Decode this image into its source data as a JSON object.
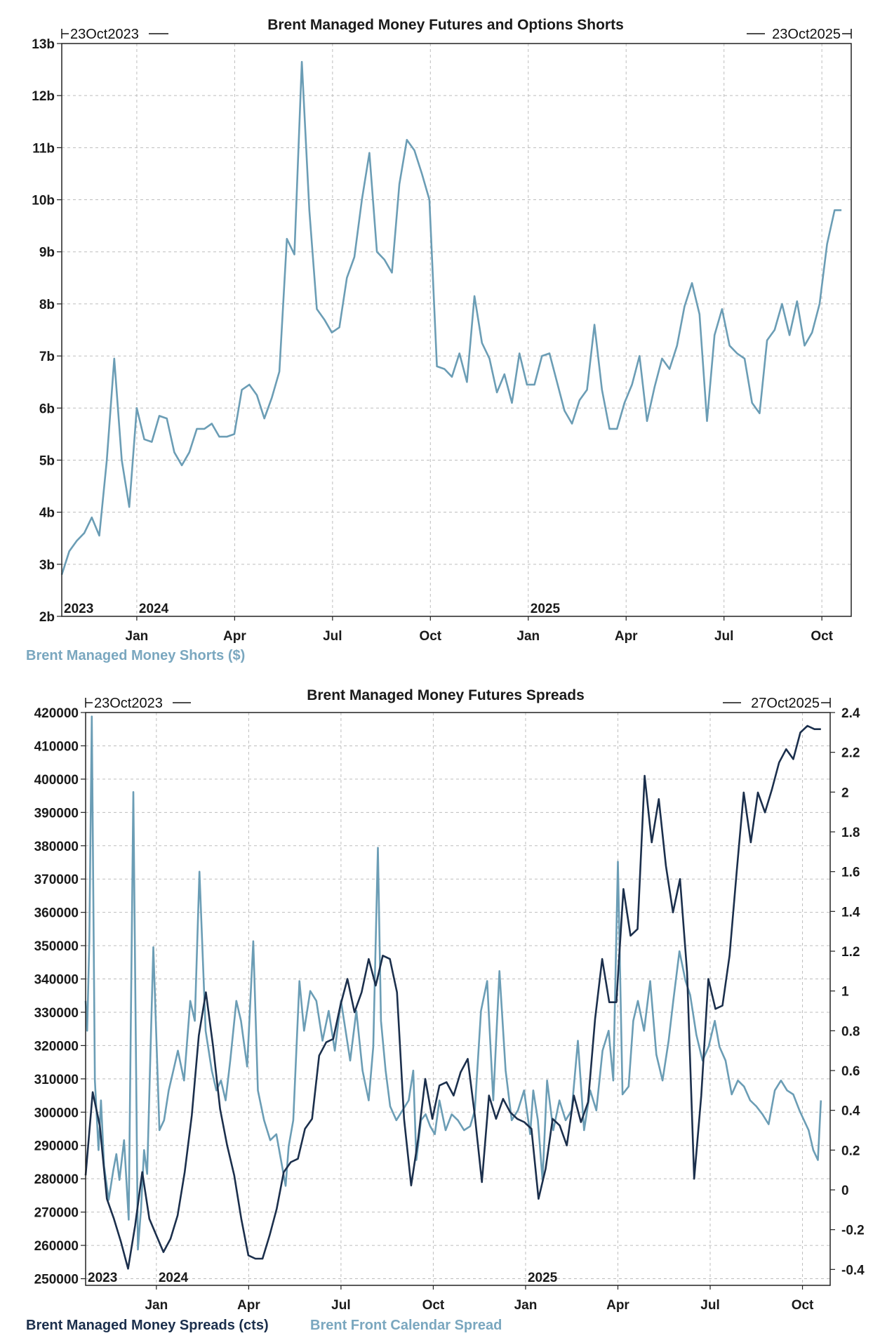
{
  "chart_data": [
    {
      "type": "line",
      "title": "Brent Managed Money Futures and Options Shorts",
      "range_start": "23Oct2023",
      "range_end": "23Oct2025",
      "ylabel": "",
      "y_ticks": [
        "2b",
        "3b",
        "4b",
        "5b",
        "6b",
        "7b",
        "8b",
        "9b",
        "10b",
        "11b",
        "12b",
        "13b"
      ],
      "ylim": [
        2,
        13
      ],
      "y_unit": "billions USD",
      "x_ticks": [
        "Jan",
        "Apr",
        "Jul",
        "Oct",
        "Jan",
        "Apr",
        "Jul",
        "Oct"
      ],
      "x_tick_months": [
        2.3,
        5.3,
        8.3,
        11.3,
        14.3,
        17.3,
        20.3,
        23.3
      ],
      "year_labels": [
        "2023",
        "2024",
        "2025"
      ],
      "year_label_months": [
        0,
        2.3,
        14.3
      ],
      "xlim_months": [
        0,
        24.2
      ],
      "grid": true,
      "series": [
        {
          "name": "Brent Managed Money Shorts ($)",
          "color": "#6b9db5",
          "x_months": [
            0,
            0.23,
            0.46,
            0.69,
            0.92,
            1.15,
            1.38,
            1.61,
            1.84,
            2.07,
            2.3,
            2.53,
            2.76,
            2.99,
            3.22,
            3.45,
            3.68,
            3.91,
            4.14,
            4.37,
            4.6,
            4.83,
            5.06,
            5.29,
            5.52,
            5.75,
            5.98,
            6.21,
            6.44,
            6.67,
            6.9,
            7.13,
            7.36,
            7.59,
            7.82,
            8.05,
            8.28,
            8.51,
            8.74,
            8.97,
            9.2,
            9.43,
            9.66,
            9.89,
            10.12,
            10.35,
            10.58,
            10.81,
            11.04,
            11.27,
            11.5,
            11.73,
            11.96,
            12.19,
            12.42,
            12.65,
            12.88,
            13.11,
            13.34,
            13.57,
            13.8,
            14.03,
            14.26,
            14.49,
            14.72,
            14.95,
            15.18,
            15.41,
            15.64,
            15.87,
            16.1,
            16.33,
            16.56,
            16.79,
            17.02,
            17.25,
            17.48,
            17.71,
            17.94,
            18.17,
            18.4,
            18.63,
            18.86,
            19.09,
            19.32,
            19.55,
            19.78,
            20.01,
            20.24,
            20.47,
            20.7,
            20.93,
            21.16,
            21.39,
            21.62,
            21.85,
            22.08,
            22.31,
            22.54,
            22.77,
            23.0,
            23.23,
            23.46,
            23.69,
            23.9
          ],
          "values": [
            2.8,
            3.25,
            3.45,
            3.6,
            3.9,
            3.55,
            5.0,
            6.95,
            5.0,
            4.1,
            6.0,
            5.4,
            5.35,
            5.85,
            5.8,
            5.15,
            4.9,
            5.15,
            5.6,
            5.6,
            5.7,
            5.45,
            5.45,
            5.5,
            6.35,
            6.45,
            6.25,
            5.8,
            6.2,
            6.7,
            9.25,
            8.95,
            12.65,
            9.8,
            7.9,
            7.7,
            7.45,
            7.55,
            8.5,
            8.9,
            10.0,
            10.9,
            9.0,
            8.85,
            8.6,
            10.3,
            11.15,
            10.95,
            10.5,
            10.0,
            6.8,
            6.75,
            6.6,
            7.05,
            6.5,
            8.15,
            7.25,
            6.95,
            6.3,
            6.65,
            6.1,
            7.05,
            6.45,
            6.45,
            7.0,
            7.05,
            6.5,
            5.95,
            5.7,
            6.15,
            6.35,
            7.6,
            6.35,
            5.6,
            5.6,
            6.1,
            6.45,
            7.0,
            5.75,
            6.4,
            6.95,
            6.75,
            7.2,
            7.95,
            8.4,
            7.8,
            5.75,
            7.4,
            7.9,
            7.2,
            7.05,
            6.95,
            6.1,
            5.9,
            7.3,
            7.5,
            8.0,
            7.4,
            8.05,
            7.2,
            7.45,
            8.0,
            9.15,
            9.8,
            9.8
          ]
        }
      ]
    },
    {
      "type": "line",
      "title": "Brent Managed Money Futures Spreads",
      "range_start": "23Oct2023",
      "range_end": "27Oct2025",
      "y_left_ticks": [
        "250000",
        "260000",
        "270000",
        "280000",
        "290000",
        "300000",
        "310000",
        "320000",
        "330000",
        "340000",
        "350000",
        "360000",
        "370000",
        "380000",
        "390000",
        "400000",
        "410000",
        "420000"
      ],
      "ylim_left": [
        248000,
        420000
      ],
      "y_right_ticks": [
        "-0.4",
        "-0.2",
        "0",
        "0.2",
        "0.4",
        "0.6",
        "0.8",
        "1",
        "1.2",
        "1.4",
        "1.6",
        "1.8",
        "2",
        "2.2",
        "2.4"
      ],
      "ylim_right": [
        -0.48,
        2.4
      ],
      "x_ticks": [
        "Jan",
        "Apr",
        "Jul",
        "Oct",
        "Jan",
        "Apr",
        "Jul",
        "Oct"
      ],
      "x_tick_months": [
        2.3,
        5.3,
        8.3,
        11.3,
        14.3,
        17.3,
        20.3,
        23.3
      ],
      "year_labels": [
        "2023",
        "2024",
        "2025"
      ],
      "year_label_months": [
        0,
        2.3,
        14.3
      ],
      "xlim_months": [
        0,
        24.2
      ],
      "grid": true,
      "series": [
        {
          "name": "Brent Managed Money Spreads (cts)",
          "axis": "left",
          "color": "#1b2f4c",
          "x_months": [
            0,
            0.23,
            0.46,
            0.69,
            0.92,
            1.15,
            1.38,
            1.61,
            1.84,
            2.07,
            2.3,
            2.53,
            2.76,
            2.99,
            3.22,
            3.45,
            3.68,
            3.91,
            4.14,
            4.37,
            4.6,
            4.83,
            5.06,
            5.29,
            5.52,
            5.75,
            5.98,
            6.21,
            6.44,
            6.67,
            6.9,
            7.13,
            7.36,
            7.59,
            7.82,
            8.05,
            8.28,
            8.51,
            8.74,
            8.97,
            9.2,
            9.43,
            9.66,
            9.89,
            10.12,
            10.35,
            10.58,
            10.81,
            11.04,
            11.27,
            11.5,
            11.73,
            11.96,
            12.19,
            12.42,
            12.65,
            12.88,
            13.11,
            13.34,
            13.57,
            13.8,
            14.03,
            14.26,
            14.49,
            14.72,
            14.95,
            15.18,
            15.41,
            15.64,
            15.87,
            16.1,
            16.33,
            16.56,
            16.79,
            17.02,
            17.25,
            17.48,
            17.71,
            17.94,
            18.17,
            18.4,
            18.63,
            18.86,
            19.09,
            19.32,
            19.55,
            19.78,
            20.01,
            20.24,
            20.47,
            20.7,
            20.93,
            21.16,
            21.39,
            21.62,
            21.85,
            22.08,
            22.31,
            22.54,
            22.77,
            23.0,
            23.23,
            23.46,
            23.69,
            23.9
          ],
          "values": [
            281000,
            306000,
            296000,
            274000,
            268000,
            261000,
            253000,
            266000,
            282000,
            268000,
            263000,
            258000,
            262000,
            269000,
            282000,
            299000,
            323000,
            336000,
            320000,
            301000,
            290000,
            281000,
            268000,
            257000,
            256000,
            256000,
            263000,
            271000,
            282000,
            285000,
            286000,
            295000,
            298000,
            317000,
            321000,
            322000,
            332000,
            340000,
            330000,
            336000,
            346000,
            338000,
            347000,
            346000,
            336000,
            298000,
            278000,
            292000,
            310000,
            298000,
            308000,
            309000,
            305000,
            312000,
            316000,
            299000,
            279000,
            305000,
            298000,
            304000,
            300000,
            298000,
            297000,
            295000,
            274000,
            283000,
            298000,
            296000,
            290000,
            305000,
            297000,
            303000,
            328000,
            346000,
            333000,
            333000,
            367000,
            353000,
            355000,
            401000,
            381000,
            394000,
            374000,
            360000,
            370000,
            342000,
            280000,
            305000,
            340000,
            331000,
            332000,
            347000,
            372000,
            396000,
            381000,
            396000,
            390000,
            397000,
            405000,
            409000,
            406000,
            414000,
            416000,
            415000,
            415000
          ]
        },
        {
          "name": "Brent Front Calendar Spread",
          "axis": "right",
          "color": "#6b9db5",
          "x_months": [
            0,
            0.05,
            0.12,
            0.2,
            0.3,
            0.42,
            0.5,
            0.6,
            0.75,
            0.9,
            1.0,
            1.1,
            1.25,
            1.4,
            1.55,
            1.7,
            1.8,
            1.9,
            2.0,
            2.2,
            2.4,
            2.55,
            2.7,
            2.85,
            3.0,
            3.2,
            3.4,
            3.55,
            3.7,
            3.9,
            4.0,
            4.1,
            4.25,
            4.4,
            4.55,
            4.7,
            4.9,
            5.05,
            5.25,
            5.45,
            5.6,
            5.8,
            6.0,
            6.2,
            6.35,
            6.5,
            6.6,
            6.75,
            6.95,
            7.1,
            7.3,
            7.5,
            7.7,
            7.9,
            8.1,
            8.3,
            8.45,
            8.6,
            8.8,
            9.0,
            9.2,
            9.35,
            9.5,
            9.6,
            9.75,
            9.9,
            10.1,
            10.3,
            10.5,
            10.65,
            10.75,
            10.9,
            11.05,
            11.2,
            11.35,
            11.5,
            11.7,
            11.9,
            12.1,
            12.3,
            12.5,
            12.65,
            12.85,
            13.05,
            13.25,
            13.45,
            13.65,
            13.85,
            14.05,
            14.25,
            14.45,
            14.55,
            14.7,
            14.85,
            15.0,
            15.2,
            15.4,
            15.6,
            15.8,
            16.0,
            16.2,
            16.4,
            16.6,
            16.8,
            17.0,
            17.15,
            17.3,
            17.45,
            17.65,
            17.8,
            17.95,
            18.15,
            18.35,
            18.55,
            18.75,
            18.95,
            19.1,
            19.3,
            19.5,
            19.65,
            19.85,
            20.05,
            20.25,
            20.45,
            20.6,
            20.8,
            21.0,
            21.2,
            21.4,
            21.6,
            21.8,
            22.0,
            22.2,
            22.4,
            22.6,
            22.8,
            23.0,
            23.2,
            23.35,
            23.5,
            23.65,
            23.8,
            23.9
          ],
          "values": [
            0.95,
            0.8,
            1.25,
            2.38,
            0.55,
            0.2,
            0.45,
            0.12,
            -0.05,
            0.1,
            0.18,
            0.05,
            0.25,
            -0.15,
            2.0,
            -0.3,
            -0.1,
            0.2,
            0.08,
            1.22,
            0.3,
            0.35,
            0.5,
            0.6,
            0.7,
            0.55,
            0.95,
            0.85,
            1.6,
            0.8,
            0.7,
            0.6,
            0.5,
            0.55,
            0.45,
            0.65,
            0.95,
            0.85,
            0.62,
            1.25,
            0.5,
            0.35,
            0.25,
            0.28,
            0.15,
            0.02,
            0.22,
            0.35,
            1.05,
            0.8,
            1.0,
            0.95,
            0.75,
            0.9,
            0.7,
            0.95,
            0.8,
            0.65,
            0.9,
            0.6,
            0.45,
            0.72,
            1.72,
            0.85,
            0.6,
            0.42,
            0.35,
            0.4,
            0.45,
            0.6,
            0.15,
            0.35,
            0.38,
            0.32,
            0.28,
            0.45,
            0.3,
            0.38,
            0.35,
            0.3,
            0.32,
            0.4,
            0.9,
            1.05,
            0.45,
            1.1,
            0.6,
            0.35,
            0.4,
            0.5,
            0.28,
            0.5,
            0.35,
            0.05,
            0.55,
            0.3,
            0.45,
            0.35,
            0.4,
            0.75,
            0.3,
            0.5,
            0.4,
            0.7,
            0.8,
            0.55,
            1.65,
            0.48,
            0.52,
            0.85,
            0.95,
            0.8,
            1.05,
            0.68,
            0.55,
            0.75,
            0.95,
            1.2,
            1.05,
            0.98,
            0.78,
            0.65,
            0.72,
            0.85,
            0.72,
            0.65,
            0.48,
            0.55,
            0.52,
            0.45,
            0.42,
            0.38,
            0.33,
            0.5,
            0.55,
            0.5,
            0.48,
            0.4,
            0.35,
            0.3,
            0.2,
            0.15,
            0.45
          ]
        }
      ]
    }
  ]
}
